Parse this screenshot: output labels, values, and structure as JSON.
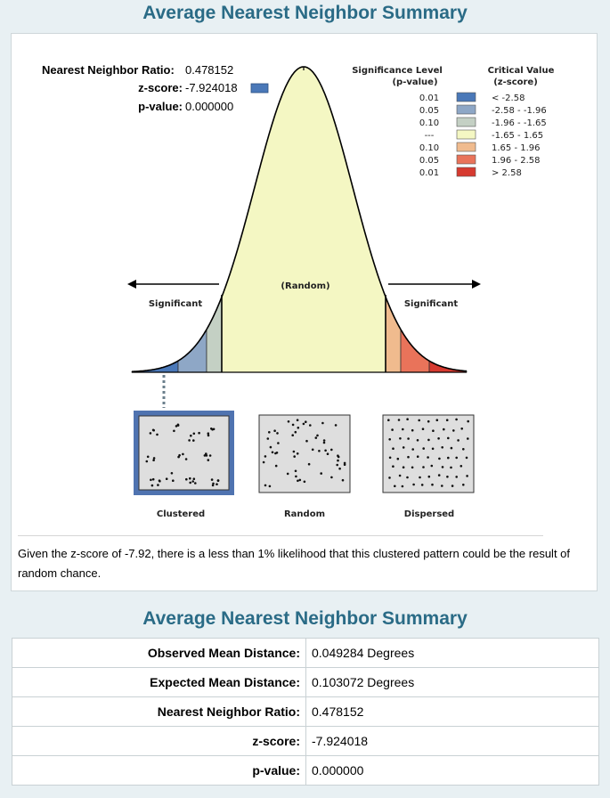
{
  "titles": {
    "top": "Average Nearest Neighbor Summary",
    "bottom": "Average Nearest Neighbor Summary"
  },
  "stats": {
    "ratio_label": "Nearest Neighbor Ratio:",
    "ratio_value": "0.478152",
    "z_label": "z-score:",
    "z_value": "-7.924018",
    "p_label": "p-value:",
    "p_value": "0.000000"
  },
  "legend": {
    "header_sig_1": "Significance Level",
    "header_sig_2": "(p-value)",
    "header_crit_1": "Critical Value",
    "header_crit_2": "(z-score)",
    "rows": [
      {
        "p": "0.01",
        "z": "< -2.58",
        "color": "#4a78b8"
      },
      {
        "p": "0.05",
        "z": "-2.58 - -1.96",
        "color": "#8ea7c6"
      },
      {
        "p": "0.10",
        "z": "-1.96 - -1.65",
        "color": "#c4d0c4"
      },
      {
        "p": "---",
        "z": "-1.65 - 1.65",
        "color": "#f4f7c3"
      },
      {
        "p": "0.10",
        "z": "1.65 - 1.96",
        "color": "#f0bb8e"
      },
      {
        "p": "0.05",
        "z": "1.96 - 2.58",
        "color": "#e9735a"
      },
      {
        "p": "0.01",
        "z": "> 2.58",
        "color": "#d63a30"
      }
    ]
  },
  "curve": {
    "random_label": "(Random)",
    "significant_left": "Significant",
    "significant_right": "Significant"
  },
  "patterns": {
    "clustered": "Clustered",
    "random": "Random",
    "dispersed": "Dispersed"
  },
  "message": "Given the z-score of -7.92, there is a less than 1% likelihood that this clustered pattern could be the result of random chance.",
  "table": [
    {
      "label": "Observed Mean Distance:",
      "value": "0.049284 Degrees"
    },
    {
      "label": "Expected Mean Distance:",
      "value": "0.103072 Degrees"
    },
    {
      "label": "Nearest Neighbor Ratio:",
      "value": "0.478152"
    },
    {
      "label": "z-score:",
      "value": "-7.924018"
    },
    {
      "label": "p-value:",
      "value": "0.000000"
    }
  ]
}
